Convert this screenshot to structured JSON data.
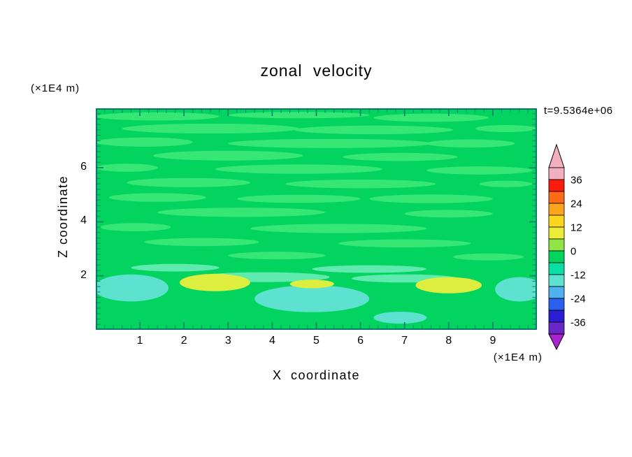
{
  "chart_data": {
    "type": "heatmap",
    "title": "zonal velocity",
    "xlabel": "X coordinate",
    "ylabel": "Z coordinate",
    "x_unit": "(×1E4 m)",
    "z_unit": "(×1E4 m)",
    "time_annotation": "t=9.5364e+06",
    "x_range": [
      0,
      10
    ],
    "z_range": [
      0,
      8.2
    ],
    "x_ticks": [
      1,
      2,
      3,
      4,
      5,
      6,
      7,
      8,
      9
    ],
    "z_ticks": [
      2,
      4,
      6
    ],
    "minor_tick_step": 0.2,
    "frame_color": "#007B6C",
    "field": {
      "palette": {
        "base": "#02D45F",
        "light": "#37E776",
        "mint": "#5FEBB0",
        "cyan": "#5CE2CE",
        "yellow": "#DDEE3E"
      },
      "tone_value_ranges": {
        "base": "-6 to 0",
        "light": "0 to 6",
        "mint": "-12 to -6",
        "cyan": "-18 to -12",
        "yellow": "6 to 12"
      },
      "features": [
        {
          "x": 1.4,
          "z": 7.9,
          "rx": 1.4,
          "rz": 0.15,
          "tone": "light"
        },
        {
          "x": 4.6,
          "z": 7.95,
          "rx": 1.6,
          "rz": 0.12,
          "tone": "light"
        },
        {
          "x": 7.6,
          "z": 7.85,
          "rx": 1.3,
          "rz": 0.15,
          "tone": "light"
        },
        {
          "x": 2.6,
          "z": 7.45,
          "rx": 2.0,
          "rz": 0.18,
          "tone": "light"
        },
        {
          "x": 6.3,
          "z": 7.4,
          "rx": 1.8,
          "rz": 0.16,
          "tone": "light"
        },
        {
          "x": 9.3,
          "z": 7.45,
          "rx": 0.7,
          "rz": 0.13,
          "tone": "light"
        },
        {
          "x": 1.1,
          "z": 6.95,
          "rx": 1.1,
          "rz": 0.17,
          "tone": "light"
        },
        {
          "x": 5.3,
          "z": 6.9,
          "rx": 2.3,
          "rz": 0.17,
          "tone": "light"
        },
        {
          "x": 8.5,
          "z": 6.9,
          "rx": 1.0,
          "rz": 0.15,
          "tone": "light"
        },
        {
          "x": 3.0,
          "z": 6.45,
          "rx": 1.7,
          "rz": 0.18,
          "tone": "light"
        },
        {
          "x": 6.9,
          "z": 6.4,
          "rx": 1.3,
          "rz": 0.15,
          "tone": "light"
        },
        {
          "x": 0.7,
          "z": 6.0,
          "rx": 0.7,
          "rz": 0.15,
          "tone": "light"
        },
        {
          "x": 4.6,
          "z": 5.95,
          "rx": 1.9,
          "rz": 0.17,
          "tone": "light"
        },
        {
          "x": 8.7,
          "z": 5.9,
          "rx": 1.2,
          "rz": 0.15,
          "tone": "light"
        },
        {
          "x": 2.1,
          "z": 5.45,
          "rx": 1.4,
          "rz": 0.17,
          "tone": "light"
        },
        {
          "x": 6.0,
          "z": 5.4,
          "rx": 1.7,
          "rz": 0.16,
          "tone": "light"
        },
        {
          "x": 9.3,
          "z": 5.4,
          "rx": 0.6,
          "rz": 0.12,
          "tone": "light"
        },
        {
          "x": 1.4,
          "z": 4.9,
          "rx": 1.1,
          "rz": 0.16,
          "tone": "light"
        },
        {
          "x": 4.6,
          "z": 4.85,
          "rx": 1.4,
          "rz": 0.15,
          "tone": "light"
        },
        {
          "x": 7.6,
          "z": 4.85,
          "rx": 1.4,
          "rz": 0.16,
          "tone": "light"
        },
        {
          "x": 3.3,
          "z": 4.35,
          "rx": 1.9,
          "rz": 0.17,
          "tone": "light"
        },
        {
          "x": 8.0,
          "z": 4.3,
          "rx": 1.0,
          "rz": 0.14,
          "tone": "light"
        },
        {
          "x": 0.9,
          "z": 3.8,
          "rx": 0.8,
          "rz": 0.15,
          "tone": "light"
        },
        {
          "x": 5.5,
          "z": 3.75,
          "rx": 2.0,
          "rz": 0.17,
          "tone": "light"
        },
        {
          "x": 2.4,
          "z": 3.25,
          "rx": 1.3,
          "rz": 0.15,
          "tone": "light"
        },
        {
          "x": 7.0,
          "z": 3.2,
          "rx": 1.5,
          "rz": 0.15,
          "tone": "light"
        },
        {
          "x": 4.1,
          "z": 2.75,
          "rx": 1.1,
          "rz": 0.14,
          "tone": "light"
        },
        {
          "x": 8.9,
          "z": 2.7,
          "rx": 0.8,
          "rz": 0.13,
          "tone": "light"
        },
        {
          "x": 1.8,
          "z": 2.3,
          "rx": 1.0,
          "rz": 0.14,
          "tone": "mint"
        },
        {
          "x": 6.2,
          "z": 2.25,
          "rx": 1.3,
          "rz": 0.14,
          "tone": "mint"
        },
        {
          "x": 3.8,
          "z": 1.95,
          "rx": 1.5,
          "rz": 0.18,
          "tone": "mint"
        },
        {
          "x": 7.0,
          "z": 1.9,
          "rx": 1.2,
          "rz": 0.15,
          "tone": "mint"
        },
        {
          "x": 0.8,
          "z": 1.55,
          "rx": 0.85,
          "rz": 0.5,
          "tone": "cyan"
        },
        {
          "x": 4.9,
          "z": 1.15,
          "rx": 1.3,
          "rz": 0.5,
          "tone": "cyan"
        },
        {
          "x": 9.6,
          "z": 1.5,
          "rx": 0.55,
          "rz": 0.45,
          "tone": "cyan"
        },
        {
          "x": 6.9,
          "z": 0.45,
          "rx": 0.6,
          "rz": 0.22,
          "tone": "cyan"
        },
        {
          "x": 2.7,
          "z": 1.75,
          "rx": 0.8,
          "rz": 0.32,
          "tone": "yellow"
        },
        {
          "x": 8.0,
          "z": 1.65,
          "rx": 0.75,
          "rz": 0.3,
          "tone": "yellow"
        },
        {
          "x": 4.9,
          "z": 1.7,
          "rx": 0.5,
          "rz": 0.16,
          "tone": "yellow"
        }
      ]
    },
    "colorbar": {
      "labels": [
        "36",
        "24",
        "12",
        "0",
        "-12",
        "-24",
        "-36"
      ],
      "label_values": [
        36,
        24,
        12,
        0,
        -12,
        -24,
        -36
      ],
      "over_color": "#F2AFC0",
      "under_color": "#AB22CE",
      "boxes": [
        {
          "from": 42,
          "to": 36,
          "color": "#F2AFC0"
        },
        {
          "from": 36,
          "to": 30,
          "color": "#FB1C0C"
        },
        {
          "from": 30,
          "to": 24,
          "color": "#FD6A18"
        },
        {
          "from": 24,
          "to": 18,
          "color": "#FEA51E"
        },
        {
          "from": 18,
          "to": 12,
          "color": "#FDD41E"
        },
        {
          "from": 12,
          "to": 6,
          "color": "#EDEC3A"
        },
        {
          "from": 6,
          "to": 0,
          "color": "#8FE546"
        },
        {
          "from": 0,
          "to": -6,
          "color": "#02D45F"
        },
        {
          "from": -6,
          "to": -12,
          "color": "#0ADFA2"
        },
        {
          "from": -12,
          "to": -18,
          "color": "#5CE2CE"
        },
        {
          "from": -18,
          "to": -24,
          "color": "#4FB2EE"
        },
        {
          "from": -24,
          "to": -30,
          "color": "#2A60EE"
        },
        {
          "from": -30,
          "to": -36,
          "color": "#2A1ED2"
        },
        {
          "from": -36,
          "to": -42,
          "color": "#6A28C8"
        }
      ]
    }
  }
}
